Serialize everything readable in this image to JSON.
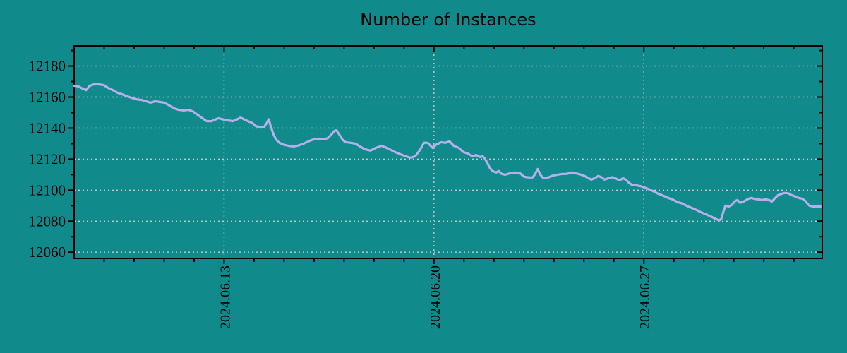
{
  "colors": {
    "background": "#118a8b",
    "line": "#b5b0e9",
    "grid": "#c9c9c9",
    "axis": "#000000",
    "text": "#000000"
  },
  "chart_data": {
    "type": "line",
    "title": "Number of Instances",
    "xlabel": "",
    "ylabel": "",
    "legend": "none",
    "grid": "dotted major gridlines, both axes",
    "x_unit": "days since 2024-06-08",
    "xlim": [
      0,
      24.95
    ],
    "ylim": [
      12056,
      12193
    ],
    "y_ticks_major": [
      12060,
      12080,
      12100,
      12120,
      12140,
      12160,
      12180
    ],
    "y_ticks_minor": [
      12070,
      12090,
      12110,
      12130,
      12150,
      12170,
      12190
    ],
    "x_ticks_major": [
      {
        "d": 5,
        "label": "2024.06.13"
      },
      {
        "d": 12,
        "label": "2024.06.20"
      },
      {
        "d": 19,
        "label": "2024.06.27"
      }
    ],
    "x_ticks_minor": [
      1,
      2,
      3,
      4,
      6,
      7,
      8,
      9,
      10,
      11,
      13,
      14,
      15,
      16,
      17,
      18,
      20,
      21,
      22,
      23,
      24
    ],
    "series": [
      {
        "name": "instances",
        "points": [
          [
            0.0,
            12167.3
          ],
          [
            0.12,
            12167.0
          ],
          [
            0.28,
            12165.5
          ],
          [
            0.4,
            12164.5
          ],
          [
            0.52,
            12167.3
          ],
          [
            0.66,
            12168.2
          ],
          [
            0.82,
            12168.2
          ],
          [
            0.99,
            12167.7
          ],
          [
            1.13,
            12165.9
          ],
          [
            1.29,
            12164.5
          ],
          [
            1.46,
            12162.7
          ],
          [
            1.6,
            12161.8
          ],
          [
            1.76,
            12160.5
          ],
          [
            1.93,
            12159.5
          ],
          [
            2.07,
            12158.6
          ],
          [
            2.24,
            12158.2
          ],
          [
            2.4,
            12157.3
          ],
          [
            2.54,
            12156.4
          ],
          [
            2.71,
            12157.3
          ],
          [
            2.87,
            12156.8
          ],
          [
            3.01,
            12156.4
          ],
          [
            3.18,
            12154.5
          ],
          [
            3.34,
            12152.7
          ],
          [
            3.48,
            12151.8
          ],
          [
            3.65,
            12151.4
          ],
          [
            3.81,
            12151.8
          ],
          [
            3.95,
            12150.9
          ],
          [
            4.12,
            12148.6
          ],
          [
            4.28,
            12146.4
          ],
          [
            4.42,
            12144.5
          ],
          [
            4.59,
            12144.5
          ],
          [
            4.75,
            12145.9
          ],
          [
            4.82,
            12146.4
          ],
          [
            4.99,
            12145.5
          ],
          [
            5.13,
            12145.0
          ],
          [
            5.29,
            12144.5
          ],
          [
            5.46,
            12145.9
          ],
          [
            5.55,
            12146.8
          ],
          [
            5.69,
            12145.5
          ],
          [
            5.84,
            12144.1
          ],
          [
            5.95,
            12143.2
          ],
          [
            6.05,
            12141.4
          ],
          [
            6.14,
            12140.9
          ],
          [
            6.24,
            12140.7
          ],
          [
            6.33,
            12140.5
          ],
          [
            6.42,
            12143.2
          ],
          [
            6.49,
            12145.7
          ],
          [
            6.56,
            12141.0
          ],
          [
            6.64,
            12136.4
          ],
          [
            6.73,
            12132.7
          ],
          [
            6.85,
            12130.5
          ],
          [
            6.99,
            12129.3
          ],
          [
            7.15,
            12128.6
          ],
          [
            7.32,
            12128.2
          ],
          [
            7.48,
            12128.8
          ],
          [
            7.65,
            12130.0
          ],
          [
            7.81,
            12131.4
          ],
          [
            7.98,
            12132.7
          ],
          [
            8.14,
            12133.2
          ],
          [
            8.31,
            12132.9
          ],
          [
            8.45,
            12133.4
          ],
          [
            8.56,
            12135.5
          ],
          [
            8.68,
            12138.2
          ],
          [
            8.75,
            12138.6
          ],
          [
            8.87,
            12135.0
          ],
          [
            8.96,
            12132.3
          ],
          [
            9.06,
            12130.9
          ],
          [
            9.22,
            12130.5
          ],
          [
            9.39,
            12130.0
          ],
          [
            9.53,
            12128.2
          ],
          [
            9.69,
            12126.4
          ],
          [
            9.88,
            12125.5
          ],
          [
            10.07,
            12127.3
          ],
          [
            10.26,
            12128.6
          ],
          [
            10.47,
            12126.8
          ],
          [
            10.71,
            12124.5
          ],
          [
            10.94,
            12122.7
          ],
          [
            11.2,
            12120.9
          ],
          [
            11.32,
            12121.4
          ],
          [
            11.41,
            12122.7
          ],
          [
            11.53,
            12125.9
          ],
          [
            11.67,
            12130.6
          ],
          [
            11.79,
            12130.5
          ],
          [
            11.95,
            12127.3
          ],
          [
            12.09,
            12129.5
          ],
          [
            12.24,
            12130.9
          ],
          [
            12.38,
            12130.5
          ],
          [
            12.52,
            12131.4
          ],
          [
            12.66,
            12128.6
          ],
          [
            12.82,
            12127.3
          ],
          [
            12.99,
            12124.5
          ],
          [
            13.13,
            12123.6
          ],
          [
            13.29,
            12121.8
          ],
          [
            13.41,
            12122.7
          ],
          [
            13.53,
            12121.4
          ],
          [
            13.62,
            12121.8
          ],
          [
            13.69,
            12120.5
          ],
          [
            13.76,
            12118.2
          ],
          [
            13.86,
            12114.5
          ],
          [
            13.95,
            12112.3
          ],
          [
            14.07,
            12111.4
          ],
          [
            14.16,
            12112.3
          ],
          [
            14.26,
            12110.5
          ],
          [
            14.38,
            12110.0
          ],
          [
            14.54,
            12110.9
          ],
          [
            14.71,
            12111.4
          ],
          [
            14.87,
            12110.9
          ],
          [
            15.01,
            12108.6
          ],
          [
            15.18,
            12108.2
          ],
          [
            15.29,
            12108.2
          ],
          [
            15.36,
            12110.0
          ],
          [
            15.46,
            12113.6
          ],
          [
            15.55,
            12110.0
          ],
          [
            15.65,
            12107.7
          ],
          [
            15.81,
            12108.2
          ],
          [
            15.98,
            12109.5
          ],
          [
            16.12,
            12110.0
          ],
          [
            16.28,
            12110.5
          ],
          [
            16.42,
            12110.5
          ],
          [
            16.59,
            12111.4
          ],
          [
            16.71,
            12110.9
          ],
          [
            16.82,
            12110.5
          ],
          [
            16.99,
            12109.5
          ],
          [
            17.11,
            12108.2
          ],
          [
            17.25,
            12106.8
          ],
          [
            17.36,
            12107.7
          ],
          [
            17.48,
            12109.1
          ],
          [
            17.6,
            12108.2
          ],
          [
            17.69,
            12106.8
          ],
          [
            17.81,
            12107.7
          ],
          [
            17.95,
            12108.4
          ],
          [
            18.09,
            12107.3
          ],
          [
            18.19,
            12106.4
          ],
          [
            18.31,
            12107.7
          ],
          [
            18.4,
            12106.8
          ],
          [
            18.49,
            12105.0
          ],
          [
            18.59,
            12103.6
          ],
          [
            18.73,
            12103.2
          ],
          [
            18.87,
            12102.7
          ],
          [
            19.01,
            12101.8
          ],
          [
            19.18,
            12100.5
          ],
          [
            19.34,
            12099.1
          ],
          [
            19.48,
            12097.7
          ],
          [
            19.65,
            12096.4
          ],
          [
            19.81,
            12095.0
          ],
          [
            19.95,
            12094.1
          ],
          [
            20.12,
            12092.3
          ],
          [
            20.28,
            12091.4
          ],
          [
            20.42,
            12090.0
          ],
          [
            20.59,
            12088.6
          ],
          [
            20.75,
            12087.3
          ],
          [
            20.89,
            12085.9
          ],
          [
            21.06,
            12084.5
          ],
          [
            21.22,
            12083.2
          ],
          [
            21.36,
            12081.8
          ],
          [
            21.51,
            12080.5
          ],
          [
            21.58,
            12081.4
          ],
          [
            21.65,
            12086.0
          ],
          [
            21.72,
            12090.0
          ],
          [
            21.84,
            12089.5
          ],
          [
            21.93,
            12090.5
          ],
          [
            22.05,
            12093.0
          ],
          [
            22.12,
            12093.6
          ],
          [
            22.21,
            12091.8
          ],
          [
            22.31,
            12092.5
          ],
          [
            22.4,
            12093.5
          ],
          [
            22.49,
            12094.5
          ],
          [
            22.59,
            12095.0
          ],
          [
            22.71,
            12094.3
          ],
          [
            22.82,
            12094.1
          ],
          [
            22.94,
            12093.6
          ],
          [
            23.06,
            12094.1
          ],
          [
            23.18,
            12093.6
          ],
          [
            23.27,
            12092.7
          ],
          [
            23.36,
            12094.5
          ],
          [
            23.48,
            12096.8
          ],
          [
            23.6,
            12097.7
          ],
          [
            23.69,
            12098.2
          ],
          [
            23.81,
            12098.0
          ],
          [
            23.93,
            12096.8
          ],
          [
            24.05,
            12095.9
          ],
          [
            24.16,
            12095.0
          ],
          [
            24.28,
            12094.5
          ],
          [
            24.38,
            12093.2
          ],
          [
            24.45,
            12091.4
          ],
          [
            24.52,
            12090.0
          ],
          [
            24.64,
            12089.5
          ],
          [
            24.75,
            12089.5
          ],
          [
            24.89,
            12089.5
          ]
        ]
      }
    ]
  }
}
